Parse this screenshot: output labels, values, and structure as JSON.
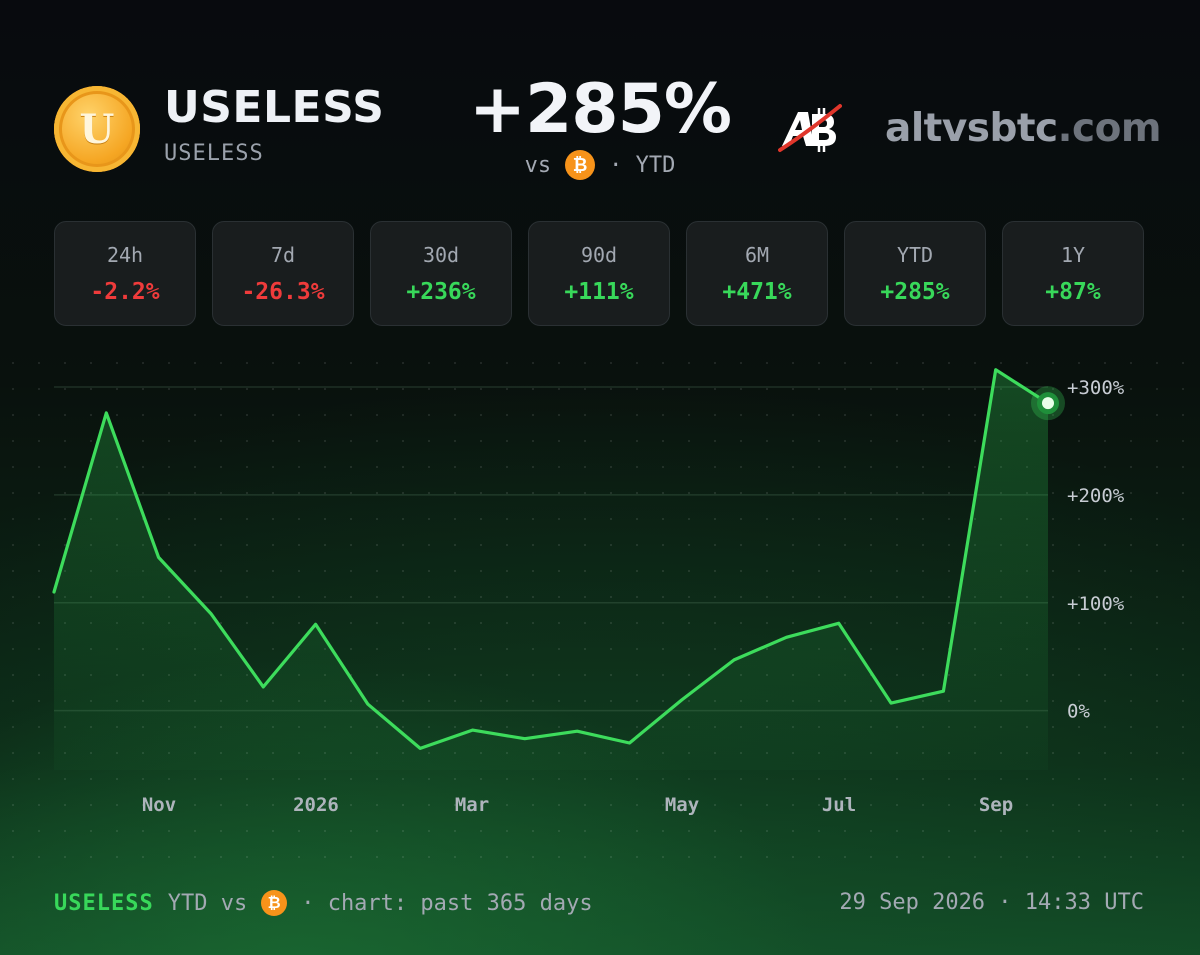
{
  "header": {
    "coin_logo_letter": "U",
    "coin_name": "USELESS",
    "coin_ticker": "USELESS",
    "headline": "+285%",
    "sub_vs": "vs",
    "sub_period": "· YTD",
    "btc_symbol": "₿",
    "brand_mark_text": "AB",
    "brand_domain": "altvsbtc",
    "brand_tld": ".com"
  },
  "tiles": [
    {
      "label": "24h",
      "value": "-2.2%",
      "trend": "negative"
    },
    {
      "label": "7d",
      "value": "-26.3%",
      "trend": "negative"
    },
    {
      "label": "30d",
      "value": "+236%",
      "trend": "positive"
    },
    {
      "label": "90d",
      "value": "+111%",
      "trend": "positive"
    },
    {
      "label": "6M",
      "value": "+471%",
      "trend": "positive"
    },
    {
      "label": "YTD",
      "value": "+285%",
      "trend": "positive"
    },
    {
      "label": "1Y",
      "value": "+87%",
      "trend": "positive"
    }
  ],
  "colors": {
    "positive": "#38d85a",
    "negative": "#ef3b3b",
    "line": "#3ddc5c",
    "btc": "#f7931a",
    "coin": "#f5a623"
  },
  "chart_data": {
    "type": "line",
    "x_ticks": [
      "Nov",
      "2026",
      "Mar",
      "May",
      "Jul",
      "Sep"
    ],
    "y_ticks": [
      "+300%",
      "+200%",
      "+100%",
      "0%"
    ],
    "y_tick_values": [
      300,
      200,
      100,
      0
    ],
    "ylim": [
      -55,
      325
    ],
    "grid": true,
    "series": [
      {
        "values": [
          110,
          276,
          142,
          90,
          22,
          80,
          6,
          -35,
          -18,
          -26,
          -19,
          -30,
          10,
          47,
          68,
          81,
          7,
          18,
          316,
          285
        ]
      }
    ]
  },
  "footer": {
    "coin": "USELESS",
    "ytd_vs": "YTD vs",
    "chart_note": "· chart: past 365 days",
    "timestamp": "29 Sep 2026 · 14:33 UTC"
  }
}
